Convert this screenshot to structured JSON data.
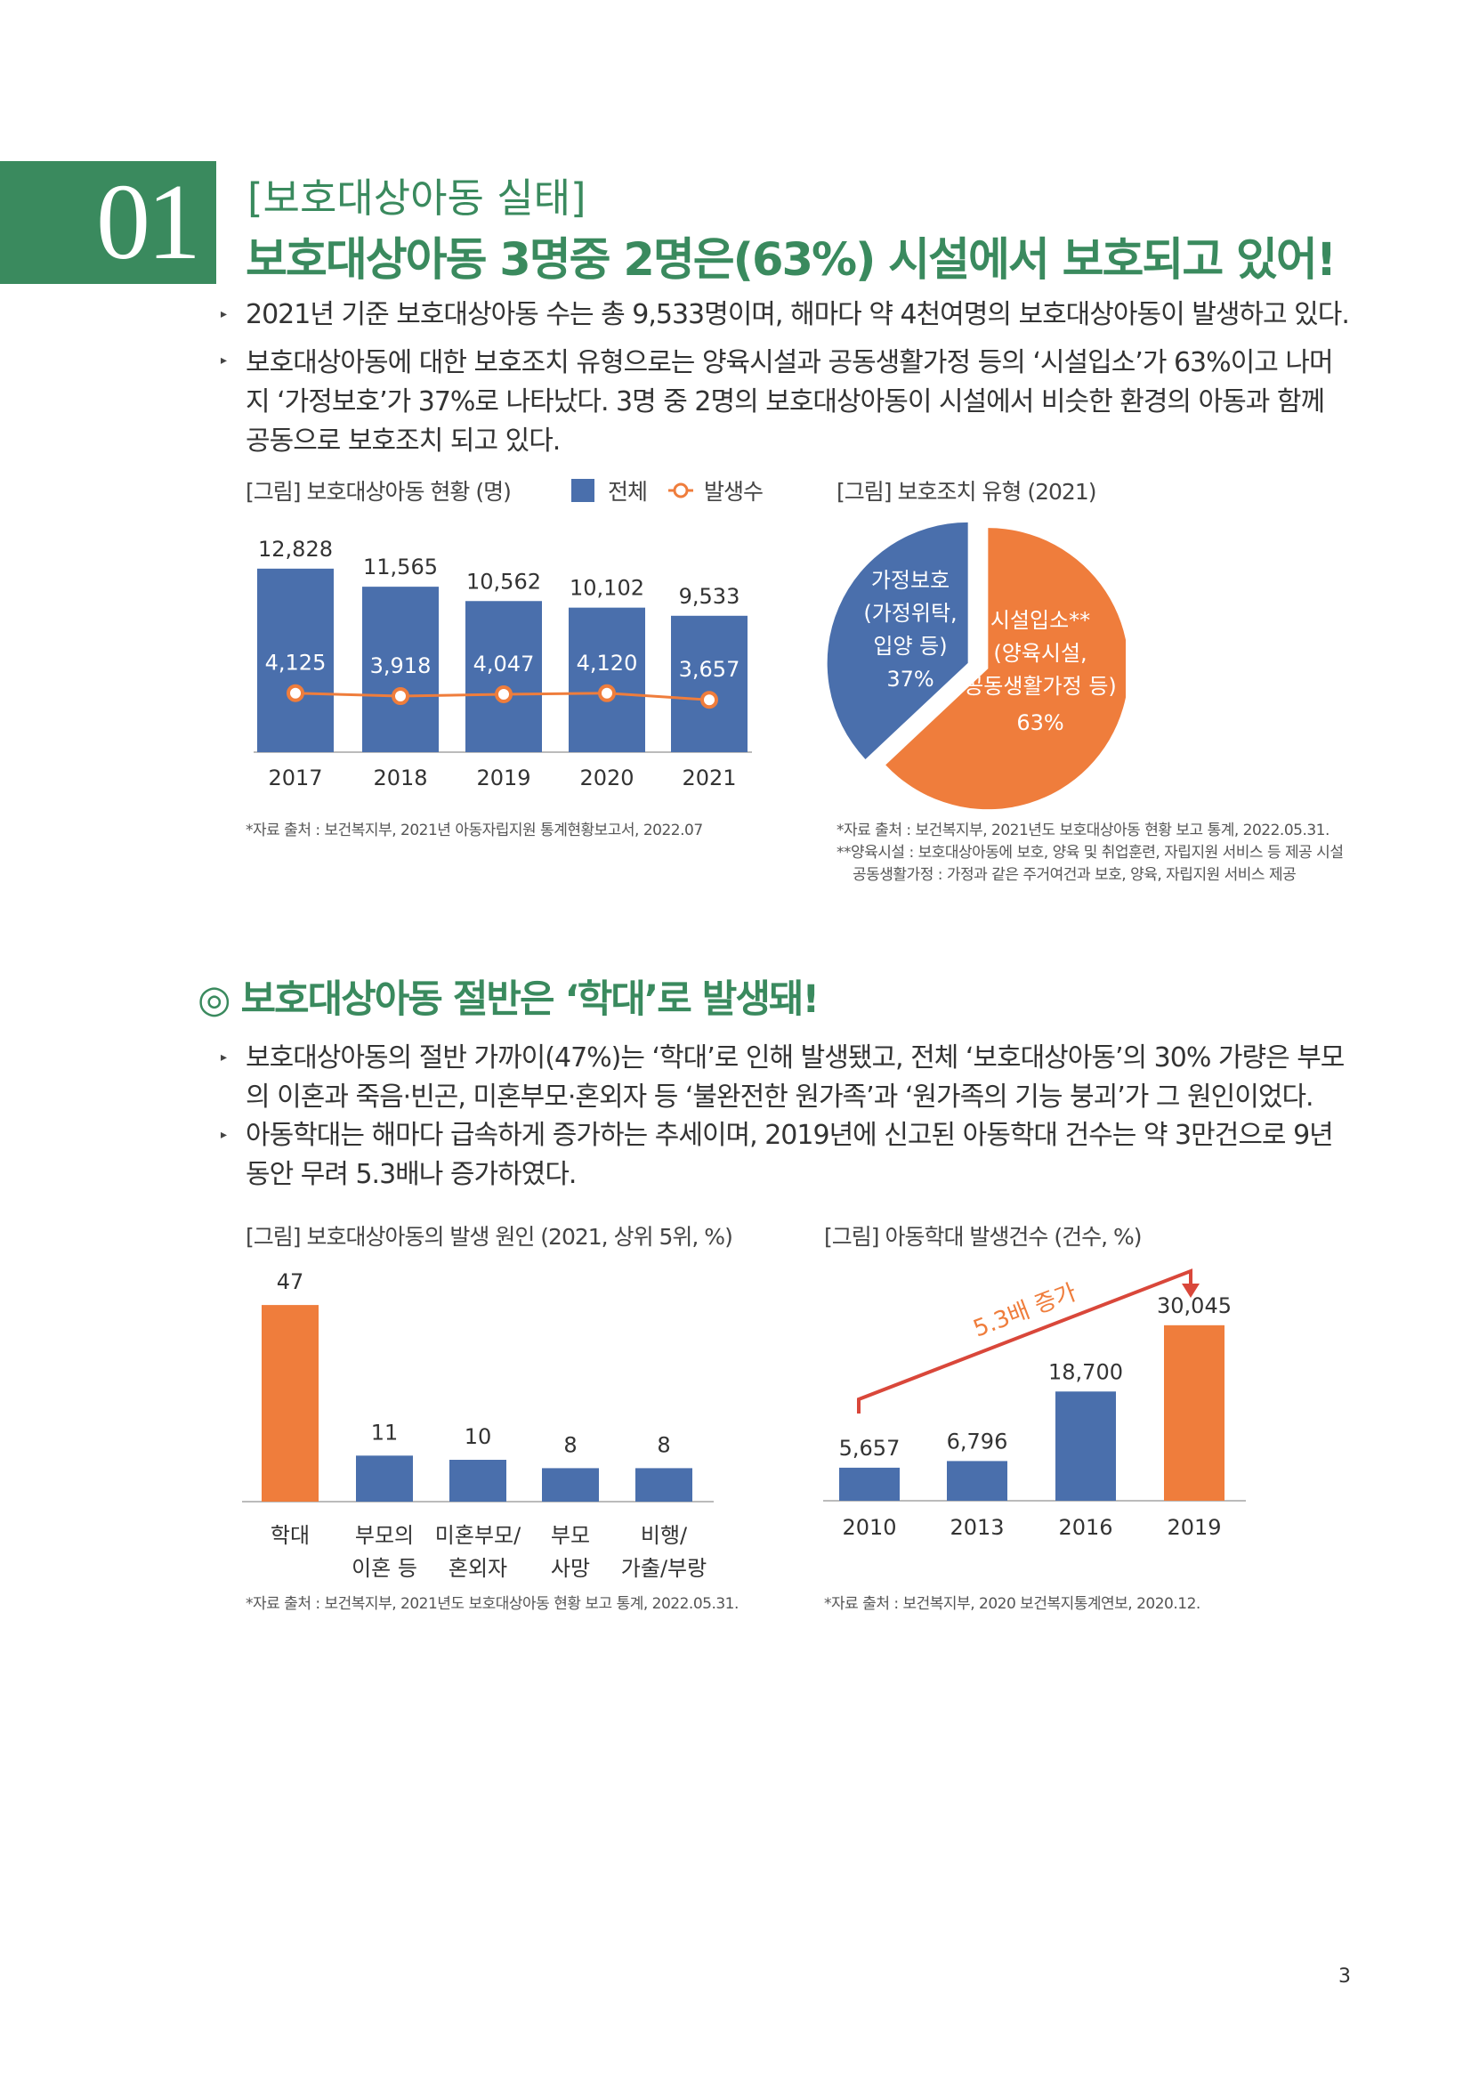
{
  "section": {
    "number": "01",
    "kicker": "[보호대상아동 실태]",
    "headline": "보호대상아동 3명중 2명은(63%) 시설에서 보호되고 있어!",
    "bullets": [
      "2021년 기준 보호대상아동 수는 총 9,533명이며, 해마다 약 4천여명의 보호대상아동이 발생하고 있다.",
      "보호대상아동에 대한 보호조치 유형으로는 양육시설과 공동생활가정 등의 ‘시설입소’가 63%이고 나머지 ‘가정보호’가 37%로 나타났다. 3명 중 2명의 보호대상아동이 시설에서 비슷한 환경의 아동과 함께 공동으로 보호조치 되고 있다."
    ]
  },
  "section2": {
    "heading": "◎ 보호대상아동 절반은 ‘학대’로 발생돼!",
    "bullets": [
      "보호대상아동의 절반 가까이(47%)는 ‘학대’로 인해 발생됐고, 전체 ‘보호대상아동’의 30% 가량은 부모의 이혼과 죽음·빈곤, 미혼부모·혼외자 등 ‘불완전한 원가족’과 ‘원가족의 기능 붕괴’가 그 원인이었다.",
      "아동학대는 해마다 급속하게 증가하는 추세이며, 2019년에 신고된 아동학대 건수는 약 3만건으로 9년 동안 무려 5.3배나 증가하였다."
    ]
  },
  "page_number": "3",
  "colors": {
    "green": "#3a8a5e",
    "blue": "#4a6fac",
    "orange": "#ef7d3c",
    "axis": "#bbbbbb"
  },
  "chart_data": [
    {
      "type": "bar",
      "title": "[그림] 보호대상아동 현황 (명)",
      "categories": [
        "2017",
        "2018",
        "2019",
        "2020",
        "2021"
      ],
      "series": [
        {
          "name": "전체",
          "type": "bar",
          "values": [
            12828,
            11565,
            10562,
            10102,
            9533
          ],
          "labels": [
            "12,828",
            "11,565",
            "10,562",
            "10,102",
            "9,533"
          ]
        },
        {
          "name": "발생수",
          "type": "line",
          "values": [
            4125,
            3918,
            4047,
            4120,
            3657
          ],
          "labels": [
            "4,125",
            "3,918",
            "4,047",
            "4,120",
            "3,657"
          ]
        }
      ],
      "ylim": [
        0,
        14000
      ],
      "source": "*자료 출처 : 보건복지부, 2021년 아동자립지원 통계현황보고서, 2022.07"
    },
    {
      "type": "pie",
      "title": "[그림] 보호조치 유형 (2021)",
      "slices": [
        {
          "label_lines": [
            "가정보호",
            "(가정위탁,",
            "입양 등)",
            "37%"
          ],
          "value": 37
        },
        {
          "label_lines": [
            "시설입소**",
            "(양육시설,",
            "공동생활가정 등)",
            "63%"
          ],
          "value": 63
        }
      ],
      "source_lines": [
        "*자료 출처 : 보건복지부, 2021년도 보호대상아동 현황 보고 통계, 2022.05.31.",
        "**양육시설 : 보호대상아동에 보호, 양육 및 취업훈련, 자립지원 서비스 등 제공 시설",
        "공동생활가정 : 가정과 같은 주거여건과 보호, 양육, 자립지원 서비스 제공"
      ]
    },
    {
      "type": "bar",
      "title": "[그림] 보호대상아동의 발생 원인 (2021, 상위 5위, %)",
      "categories": [
        [
          "학대"
        ],
        [
          "부모의",
          "이혼 등"
        ],
        [
          "미혼부모/",
          "혼외자"
        ],
        [
          "부모",
          "사망"
        ],
        [
          "비행/",
          "가출/부랑"
        ]
      ],
      "values": [
        47,
        11,
        10,
        8,
        8
      ],
      "ylim": [
        0,
        50
      ],
      "source": "*자료 출처 : 보건복지부, 2021년도 보호대상아동 현황 보고 통계, 2022.05.31."
    },
    {
      "type": "bar",
      "title": "[그림] 아동학대 발생건수 (건수, %)",
      "categories": [
        "2010",
        "2013",
        "2016",
        "2019"
      ],
      "values": [
        5657,
        6796,
        18700,
        30045
      ],
      "labels": [
        "5,657",
        "6,796",
        "18,700",
        "30,045"
      ],
      "ylim": [
        0,
        32000
      ],
      "annotation": "5.3배 증가",
      "source": "*자료 출처 : 보건복지부, 2020 보건복지통계연보, 2020.12."
    }
  ]
}
